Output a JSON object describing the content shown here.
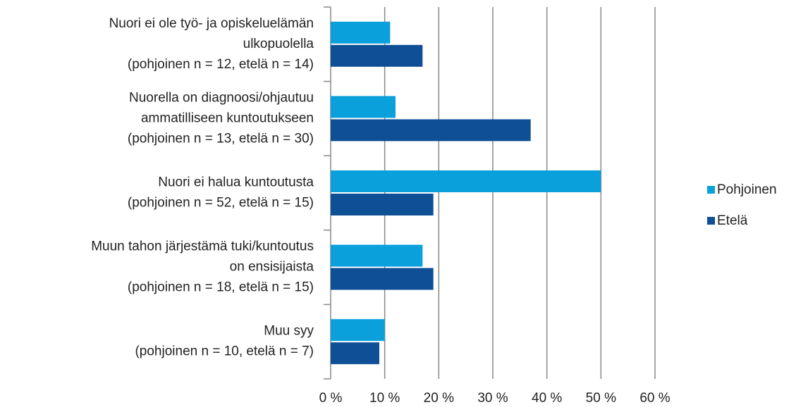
{
  "chart_data": {
    "type": "barh",
    "categories": [
      "Nuori ei ole työ- ja opiskeluelämän\nulkopuolella\n(pohjoinen n = 12, etelä n = 14)",
      "Nuorella on diagnoosi/ohjautuu\nammatilliseen kuntoutukseen\n(pohjoinen n = 13, etelä n = 30)",
      "Nuori ei halua kuntoutusta\n(pohjoinen n = 52, etelä n = 15)",
      "Muun tahon järjestämä tuki/kuntoutus\non ensisijaista\n(pohjoinen n = 18, etelä n = 15)",
      "Muu syy\n(pohjoinen n = 10, etelä n = 7)"
    ],
    "series": [
      {
        "name": "Pohjoinen",
        "color": "#0aa0dc",
        "values": [
          11,
          12,
          50,
          17,
          10
        ]
      },
      {
        "name": "Etelä",
        "color": "#0e4f96",
        "values": [
          17,
          37,
          19,
          19,
          9
        ]
      }
    ],
    "xlim": [
      0,
      60
    ],
    "xticks": [
      {
        "value": 0,
        "label": "0 %"
      },
      {
        "value": 10,
        "label": "10 %"
      },
      {
        "value": 20,
        "label": "20 %"
      },
      {
        "value": 30,
        "label": "30 %"
      },
      {
        "value": 40,
        "label": "40 %"
      },
      {
        "value": 50,
        "label": "50 %"
      },
      {
        "value": 60,
        "label": "60 %"
      }
    ],
    "grid": true,
    "legend": "right"
  }
}
